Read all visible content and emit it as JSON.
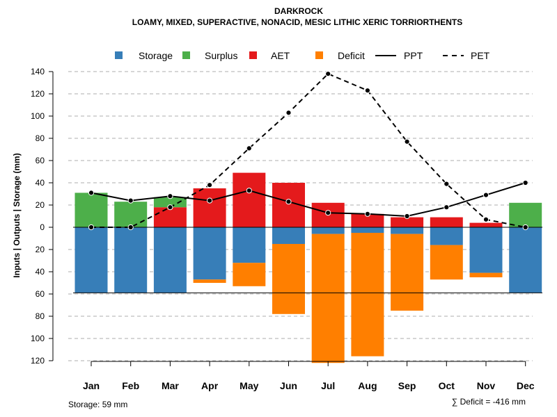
{
  "chart_data": {
    "type": "bar",
    "title": "DARKROCK",
    "subtitle": "LOAMY, MIXED, SUPERACTIVE, NONACID, MESIC LITHIC XERIC TORRIORTHENTS",
    "ylabel": "Inputs | Outputs | Storage    (mm)",
    "ylim": [
      -120,
      140
    ],
    "yticks": [
      140,
      120,
      100,
      80,
      60,
      40,
      20,
      0,
      -20,
      -40,
      -60,
      -80,
      -100,
      -120
    ],
    "ytick_labels": [
      "140",
      "120",
      "100",
      "80",
      "60",
      "40",
      "20",
      "0",
      "20",
      "40",
      "60",
      "80",
      "100",
      "120"
    ],
    "categories": [
      "Jan",
      "Feb",
      "Mar",
      "Apr",
      "May",
      "Jun",
      "Jul",
      "Aug",
      "Sep",
      "Oct",
      "Nov",
      "Dec"
    ],
    "legend": [
      {
        "name": "Storage",
        "kind": "box",
        "color": "#377EB8"
      },
      {
        "name": "Surplus",
        "kind": "box",
        "color": "#4DAF4A"
      },
      {
        "name": "AET",
        "kind": "box",
        "color": "#E41A1C"
      },
      {
        "name": "Deficit",
        "kind": "box",
        "color": "#FF7F00"
      },
      {
        "name": "PPT",
        "kind": "line",
        "color": "#000000"
      },
      {
        "name": "PET",
        "kind": "dash",
        "color": "#000000"
      }
    ],
    "series": [
      {
        "name": "Surplus",
        "values": [
          31,
          23,
          9,
          0,
          0,
          0,
          0,
          0,
          0,
          0,
          0,
          22
        ]
      },
      {
        "name": "AET",
        "values": [
          0,
          0,
          18,
          35,
          49,
          40,
          22,
          12,
          9,
          9,
          4,
          0
        ]
      },
      {
        "name": "Storage",
        "values": [
          59,
          59,
          59,
          47,
          32,
          15,
          6,
          5,
          6,
          16,
          41,
          59
        ]
      },
      {
        "name": "Deficit",
        "values": [
          0,
          0,
          0,
          3,
          21,
          63,
          116,
          111,
          69,
          31,
          4,
          0
        ]
      },
      {
        "name": "PPT",
        "values": [
          31,
          24,
          28,
          24,
          33,
          23,
          13,
          12,
          10,
          18,
          29,
          40
        ]
      },
      {
        "name": "PET",
        "values": [
          0,
          0,
          18,
          38,
          71,
          103,
          138,
          123,
          77,
          39,
          7,
          0
        ]
      }
    ],
    "storage_line": 59,
    "grid": true,
    "legend_position": "top"
  },
  "footer": {
    "storage_text": "Storage: 59 mm",
    "deficit_text": "∑ Deficit = -416 mm"
  }
}
